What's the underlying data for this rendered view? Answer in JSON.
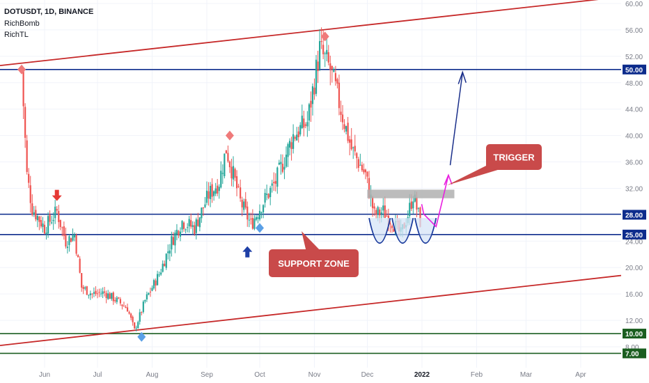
{
  "header": {
    "title": "DOTUSDT, 1D, BINANCE",
    "indicator_1": "RichBomb",
    "indicator_2": "RichTL"
  },
  "colors": {
    "up": "#26a69a",
    "down": "#ef5350",
    "channel": "#c62828",
    "level": "#0d2c8c",
    "green_level": "#1b5e20",
    "magenta": "#e91ee0",
    "callout": "#c94a4a",
    "resistance_box": "#b0b0b0"
  },
  "annotations": {
    "trigger": "TRIGGER",
    "support_zone": "SUPPORT ZONE"
  },
  "chart_data": {
    "type": "candlestick",
    "symbol": "DOTUSDT",
    "timeframe": "1D",
    "exchange": "BINANCE",
    "x_ticks": [
      "Jun",
      "Jul",
      "Aug",
      "Sep",
      "Oct",
      "Nov",
      "Dec",
      "2022",
      "Feb",
      "Mar",
      "Apr"
    ],
    "y_ticks": [
      60,
      56,
      52,
      48,
      44,
      40,
      36,
      32,
      28,
      24,
      20,
      16,
      12,
      8
    ],
    "y_tick_labels": [
      "60.00",
      "56.00",
      "52.00",
      "48.00",
      "44.00",
      "40.00",
      "36.00",
      "32.00",
      "28.00",
      "24.00",
      "20.00",
      "16.00",
      "12.00",
      "8.00"
    ],
    "ylim": [
      6,
      61
    ],
    "price_tags": [
      {
        "value": 50,
        "label": "50.00",
        "color": "#0d2c8c"
      },
      {
        "value": 28.08,
        "label": "28.08",
        "color": "none"
      },
      {
        "value": 28,
        "label": "28.00",
        "color": "#0d2c8c"
      },
      {
        "value": 25,
        "label": "25.00",
        "color": "#0d2c8c"
      },
      {
        "value": 10,
        "label": "10.00",
        "color": "#1b5e20"
      },
      {
        "value": 7,
        "label": "7.00",
        "color": "#1b5e20"
      }
    ],
    "horizontal_levels": [
      50,
      28.08,
      25,
      10,
      7
    ],
    "price_path": [
      [
        "2021-05-19",
        50
      ],
      [
        "2021-05-22",
        34
      ],
      [
        "2021-05-25",
        29
      ],
      [
        "2021-06-01",
        26
      ],
      [
        "2021-06-08",
        28.5
      ],
      [
        "2021-06-13",
        24
      ],
      [
        "2021-06-18",
        25
      ],
      [
        "2021-06-22",
        17
      ],
      [
        "2021-06-28",
        16
      ],
      [
        "2021-07-05",
        16.2
      ],
      [
        "2021-07-12",
        15
      ],
      [
        "2021-07-18",
        13.8
      ],
      [
        "2021-07-22",
        10.5
      ],
      [
        "2021-07-28",
        15
      ],
      [
        "2021-08-05",
        19
      ],
      [
        "2021-08-12",
        24
      ],
      [
        "2021-08-18",
        27
      ],
      [
        "2021-08-25",
        26
      ],
      [
        "2021-09-02",
        31
      ],
      [
        "2021-09-08",
        33
      ],
      [
        "2021-09-12",
        38
      ],
      [
        "2021-09-20",
        30
      ],
      [
        "2021-09-26",
        26.5
      ],
      [
        "2021-10-02",
        29.5
      ],
      [
        "2021-10-10",
        33
      ],
      [
        "2021-10-20",
        40
      ],
      [
        "2021-10-28",
        42
      ],
      [
        "2021-11-04",
        53
      ],
      [
        "2021-11-10",
        50
      ],
      [
        "2021-11-16",
        44
      ],
      [
        "2021-11-22",
        38
      ],
      [
        "2021-11-30",
        34
      ],
      [
        "2021-12-05",
        28
      ],
      [
        "2021-12-10",
        28.5
      ],
      [
        "2021-12-15",
        27
      ],
      [
        "2021-12-20",
        25
      ],
      [
        "2021-12-24",
        28
      ],
      [
        "2021-12-27",
        31
      ],
      [
        "2021-12-31",
        27
      ]
    ],
    "signals": [
      {
        "type": "sell-diamond",
        "date": "2021-05-19",
        "price": 50
      },
      {
        "type": "sell-diamond",
        "date": "2021-09-14",
        "price": 40
      },
      {
        "type": "sell-diamond",
        "date": "2021-11-07",
        "price": 55
      },
      {
        "type": "buy-diamond",
        "date": "2021-07-26",
        "price": 9.5
      },
      {
        "type": "buy-diamond",
        "date": "2021-10-01",
        "price": 26
      },
      {
        "type": "down-arrow",
        "date": "2021-06-08",
        "price": 30.5
      },
      {
        "type": "up-arrow",
        "date": "2021-09-24",
        "price": 22.8
      }
    ]
  }
}
